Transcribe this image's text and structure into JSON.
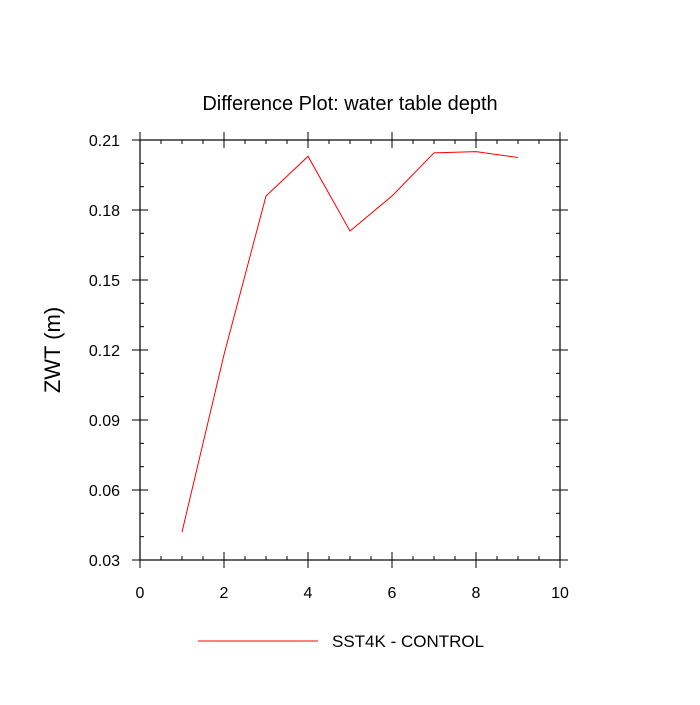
{
  "chart_data": {
    "type": "line",
    "title": "Difference Plot: water table depth",
    "xlabel": "",
    "ylabel": "ZWT  (m)",
    "xlim": [
      0,
      10
    ],
    "ylim": [
      0.03,
      0.21
    ],
    "x_ticks": [
      "0",
      "2",
      "4",
      "6",
      "8",
      "10"
    ],
    "y_ticks": [
      "0.03",
      "0.06",
      "0.09",
      "0.12",
      "0.15",
      "0.18",
      "0.21"
    ],
    "x_tick_values": [
      0,
      2,
      4,
      6,
      8,
      10
    ],
    "y_tick_values": [
      0.03,
      0.06,
      0.09,
      0.12,
      0.15,
      0.18,
      0.21
    ],
    "grid": false,
    "legend_position": "bottom-center",
    "series": [
      {
        "name": "SST4K - CONTROL",
        "color": "#ff0000",
        "x": [
          1,
          2,
          3,
          4,
          5,
          6,
          7,
          8,
          9
        ],
        "y": [
          0.042,
          0.118,
          0.186,
          0.203,
          0.171,
          0.186,
          0.2045,
          0.205,
          0.2025
        ]
      }
    ]
  }
}
